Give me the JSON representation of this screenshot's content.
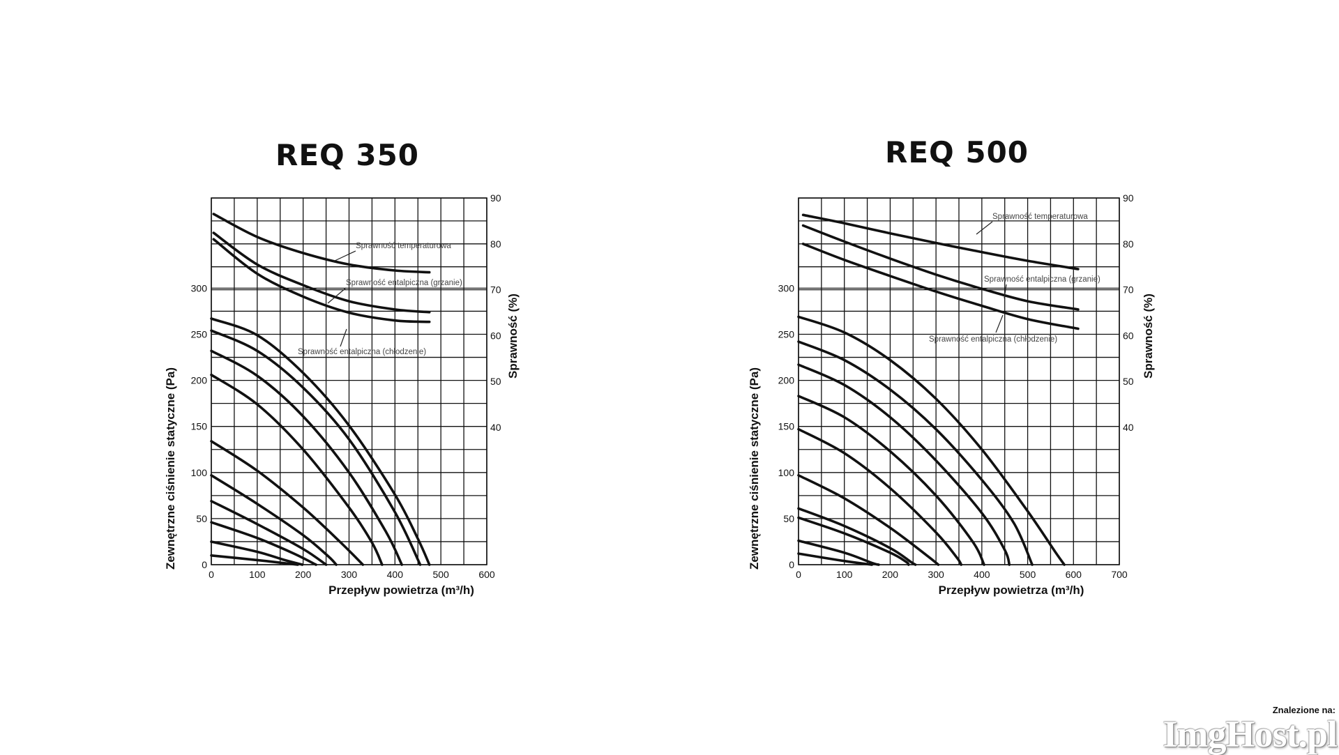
{
  "chart_data": [
    {
      "type": "line",
      "title": "REQ 350",
      "xlabel": "Przepływ powietrza (m³/h)",
      "ylabel": "Zewnętrzne ciśnienie statyczne (Pa)",
      "y2label": "Sprawność (%)",
      "xlim": [
        0,
        600
      ],
      "x_ticks": [
        "0",
        "100",
        "200",
        "300",
        "400",
        "500",
        "600"
      ],
      "y_ticks": [
        "0",
        "50",
        "100",
        "150",
        "200",
        "250",
        "300"
      ],
      "y2_ticks": [
        "40",
        "50",
        "60",
        "70",
        "80",
        "90"
      ],
      "grid": true,
      "pressure_curves": [
        {
          "points": [
            [
              0,
              267
            ],
            [
              100,
              249
            ],
            [
              200,
              208
            ],
            [
              300,
              151
            ],
            [
              400,
              76
            ],
            [
              450,
              28
            ],
            [
              475,
              0
            ]
          ]
        },
        {
          "points": [
            [
              0,
              254
            ],
            [
              100,
              232
            ],
            [
              200,
              192
            ],
            [
              300,
              136
            ],
            [
              400,
              57
            ],
            [
              455,
              0
            ]
          ]
        },
        {
          "points": [
            [
              0,
              232
            ],
            [
              100,
              205
            ],
            [
              200,
              161
            ],
            [
              300,
              100
            ],
            [
              380,
              36
            ],
            [
              415,
              0
            ]
          ]
        },
        {
          "points": [
            [
              0,
              206
            ],
            [
              100,
              174
            ],
            [
              200,
              125
            ],
            [
              300,
              62
            ],
            [
              350,
              24
            ],
            [
              372,
              0
            ]
          ]
        },
        {
          "points": [
            [
              0,
              134
            ],
            [
              100,
              102
            ],
            [
              200,
              62
            ],
            [
              280,
              25
            ],
            [
              330,
              0
            ]
          ]
        },
        {
          "points": [
            [
              0,
              97
            ],
            [
              100,
              66
            ],
            [
              200,
              32
            ],
            [
              255,
              9
            ],
            [
              272,
              0
            ]
          ]
        },
        {
          "points": [
            [
              0,
              69
            ],
            [
              100,
              44
            ],
            [
              200,
              17
            ],
            [
              250,
              0
            ]
          ]
        },
        {
          "points": [
            [
              0,
              46
            ],
            [
              100,
              29
            ],
            [
              180,
              12
            ],
            [
              228,
              0
            ]
          ]
        },
        {
          "points": [
            [
              0,
              25
            ],
            [
              100,
              14
            ],
            [
              160,
              5
            ],
            [
              198,
              0
            ]
          ]
        },
        {
          "points": [
            [
              0,
              10
            ],
            [
              100,
              5
            ],
            [
              188,
              0
            ]
          ]
        }
      ],
      "efficiency_curves": [
        {
          "name": "Sprawność temperaturowa",
          "points": [
            [
              5,
              86.5
            ],
            [
              100,
              81.5
            ],
            [
              200,
              78
            ],
            [
              300,
              75.5
            ],
            [
              400,
              74.2
            ],
            [
              475,
              73.8
            ]
          ]
        },
        {
          "name": "Sprawność entalpiczna (grzanie)",
          "points": [
            [
              5,
              82.4
            ],
            [
              100,
              75.5
            ],
            [
              200,
              71
            ],
            [
              300,
              67.5
            ],
            [
              400,
              65.7
            ],
            [
              475,
              65.1
            ]
          ]
        },
        {
          "name": "Sprawność entalpiczna (chłodzenie)",
          "points": [
            [
              5,
              81
            ],
            [
              100,
              73.5
            ],
            [
              200,
              68.5
            ],
            [
              300,
              65
            ],
            [
              400,
              63.3
            ],
            [
              475,
              63
            ]
          ]
        }
      ]
    },
    {
      "type": "line",
      "title": "REQ 500",
      "xlabel": "Przepływ powietrza (m³/h)",
      "ylabel": "Zewnętrzne ciśnienie statyczne (Pa)",
      "y2label": "Sprawność (%)",
      "xlim": [
        0,
        700
      ],
      "x_ticks": [
        "0",
        "100",
        "200",
        "300",
        "400",
        "500",
        "600",
        "700"
      ],
      "y_ticks": [
        "0",
        "50",
        "100",
        "150",
        "200",
        "250",
        "300"
      ],
      "y2_ticks": [
        "40",
        "50",
        "60",
        "70",
        "80",
        "90"
      ],
      "grid": true,
      "pressure_curves": [
        {
          "points": [
            [
              0,
              269
            ],
            [
              100,
              252
            ],
            [
              200,
              222
            ],
            [
              300,
              180
            ],
            [
              400,
              125
            ],
            [
              500,
              58
            ],
            [
              560,
              14
            ],
            [
              580,
              0
            ]
          ]
        },
        {
          "points": [
            [
              0,
              242
            ],
            [
              100,
              222
            ],
            [
              200,
              190
            ],
            [
              300,
              147
            ],
            [
              400,
              92
            ],
            [
              470,
              45
            ],
            [
              510,
              0
            ]
          ]
        },
        {
          "points": [
            [
              0,
              217
            ],
            [
              100,
              195
            ],
            [
              200,
              160
            ],
            [
              300,
              113
            ],
            [
              400,
              56
            ],
            [
              450,
              16
            ],
            [
              460,
              0
            ]
          ]
        },
        {
          "points": [
            [
              0,
              183
            ],
            [
              100,
              160
            ],
            [
              200,
              123
            ],
            [
              300,
              75
            ],
            [
              380,
              25
            ],
            [
              405,
              0
            ]
          ]
        },
        {
          "points": [
            [
              0,
              147
            ],
            [
              100,
              121
            ],
            [
              200,
              83
            ],
            [
              300,
              35
            ],
            [
              345,
              8
            ],
            [
              355,
              0
            ]
          ]
        },
        {
          "points": [
            [
              0,
              97
            ],
            [
              100,
              72
            ],
            [
              200,
              40
            ],
            [
              280,
              10
            ],
            [
              305,
              0
            ]
          ]
        },
        {
          "points": [
            [
              0,
              61
            ],
            [
              100,
              42
            ],
            [
              200,
              18
            ],
            [
              245,
              3
            ],
            [
              255,
              0
            ]
          ]
        },
        {
          "points": [
            [
              0,
              51
            ],
            [
              100,
              34
            ],
            [
              200,
              13
            ],
            [
              235,
              3
            ],
            [
              240,
              0
            ]
          ]
        },
        {
          "points": [
            [
              0,
              26
            ],
            [
              100,
              13
            ],
            [
              160,
              2
            ],
            [
              175,
              0
            ]
          ]
        },
        {
          "points": [
            [
              0,
              12
            ],
            [
              100,
              4
            ],
            [
              160,
              0
            ]
          ]
        }
      ],
      "efficiency_curves": [
        {
          "name": "Sprawność temperaturowa",
          "points": [
            [
              10,
              86.3
            ],
            [
              100,
              84.5
            ],
            [
              200,
              82.3
            ],
            [
              300,
              80.2
            ],
            [
              400,
              78.2
            ],
            [
              500,
              76.3
            ],
            [
              610,
              74.5
            ]
          ]
        },
        {
          "name": "Sprawność entalpiczna (grzanie)",
          "points": [
            [
              10,
              84
            ],
            [
              100,
              80.5
            ],
            [
              200,
              76.8
            ],
            [
              300,
              73.3
            ],
            [
              400,
              70.2
            ],
            [
              500,
              67.5
            ],
            [
              610,
              65.7
            ]
          ]
        },
        {
          "name": "Sprawność entalpiczna (chłodzenie)",
          "points": [
            [
              10,
              80
            ],
            [
              100,
              76.5
            ],
            [
              200,
              73
            ],
            [
              300,
              69.6
            ],
            [
              400,
              66.5
            ],
            [
              500,
              63.6
            ],
            [
              610,
              61.5
            ]
          ]
        }
      ]
    }
  ],
  "watermark": {
    "caption": "Znalezione na:",
    "logo": "ImgHost.pl"
  }
}
